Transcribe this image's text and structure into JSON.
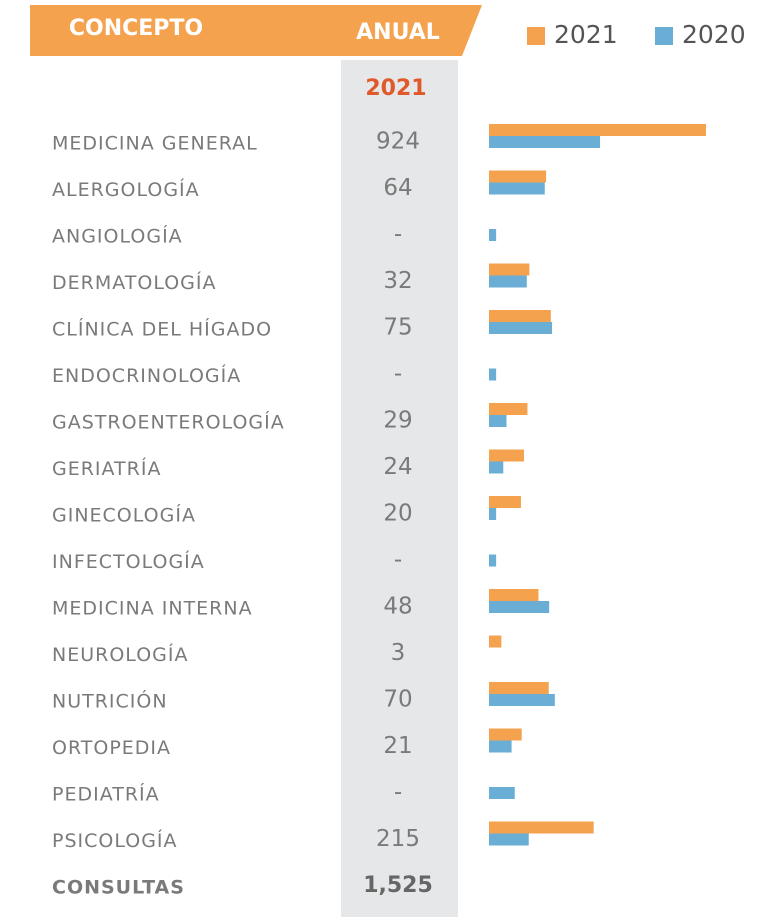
{
  "chart_data": {
    "type": "bar",
    "orientation": "horizontal",
    "x_scale": "sqrt",
    "xlim": [
      0,
      924
    ],
    "header": {
      "concept": "CONCEPTO",
      "annual": "ANUAL",
      "year": "2021"
    },
    "categories": [
      "MEDICINA GENERAL",
      "ALERGOLOGÍA",
      "ANGIOLOGÍA",
      "DERMATOLOGÍA",
      "CLÍNICA DEL HÍGADO",
      "ENDOCRINOLOGÍA",
      "GASTROENTEROLOGÍA",
      "GERIATRÍA",
      "GINECOLOGÍA",
      "INFECTOLOGÍA",
      "MEDICINA INTERNA",
      "NEUROLOGÍA",
      "NUTRICIÓN",
      "ORTOPEDIA",
      "PEDIATRÍA",
      "PSICOLOGÍA"
    ],
    "series": [
      {
        "name": "2021",
        "color": "#f4a24e",
        "values": [
          924,
          64,
          null,
          32,
          75,
          null,
          29,
          24,
          20,
          null,
          48,
          3,
          70,
          21,
          null,
          215
        ],
        "value_labels": [
          "924",
          "64",
          "-",
          "32",
          "75",
          "-",
          "29",
          "24",
          "20",
          "-",
          "48",
          "3",
          "70",
          "21",
          "-",
          "215"
        ]
      },
      {
        "name": "2020",
        "color": "#6aaed6",
        "values": [
          242,
          61,
          1,
          28,
          78,
          1,
          6,
          4,
          1,
          1,
          71,
          0,
          85,
          10,
          13,
          31
        ]
      }
    ],
    "total": {
      "name": "CONSULTAS",
      "value": 1525,
      "label": "1,525"
    }
  }
}
